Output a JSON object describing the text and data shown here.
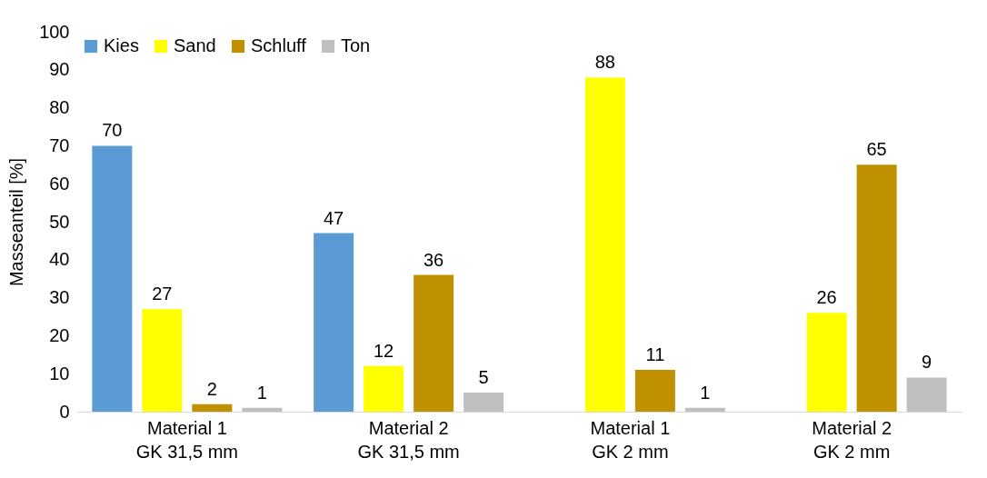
{
  "chart_data": {
    "type": "bar",
    "ylabel": "Masseanteil [%]",
    "categories": [
      "Material 1\nGK 31,5 mm",
      "Material 2\nGK 31,5 mm",
      "Material 1\nGK 2 mm",
      "Material 2\nGK 2 mm"
    ],
    "series": [
      {
        "name": "Kies",
        "color": "#5b9bd5",
        "values": [
          70,
          47,
          null,
          null
        ]
      },
      {
        "name": "Sand",
        "color": "#ffff00",
        "values": [
          27,
          12,
          88,
          26
        ]
      },
      {
        "name": "Schluff",
        "color": "#bf9000",
        "values": [
          2,
          36,
          11,
          65
        ]
      },
      {
        "name": "Ton",
        "color": "#bfbfbf",
        "values": [
          1,
          5,
          1,
          9
        ]
      }
    ],
    "ylim": [
      0,
      100
    ],
    "yticks": [
      0,
      10,
      20,
      30,
      40,
      50,
      60,
      70,
      80,
      90,
      100
    ],
    "grid": false,
    "legend": "top left",
    "data_labels": true
  }
}
